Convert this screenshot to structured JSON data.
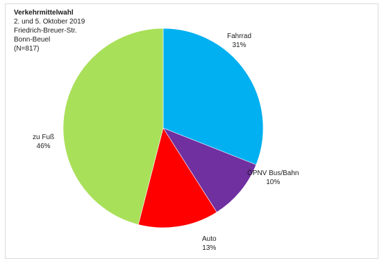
{
  "chart_data": {
    "type": "pie",
    "title": "Verkehrmittelwahl",
    "subtitle_lines": [
      "2. und 5. Oktober 2019",
      "Friedrich-Breuer-Str.",
      "Bonn-Beuel",
      "(N=817)"
    ],
    "slices": [
      {
        "name": "Fahrrad",
        "value": 31,
        "value_label": "31%",
        "color": "#00b0f0"
      },
      {
        "name": "ÖPNV Bus/Bahn",
        "value": 10,
        "value_label": "10%",
        "color": "#7030a0"
      },
      {
        "name": "Auto",
        "value": 13,
        "value_label": "13%",
        "color": "#ff0000"
      },
      {
        "name": "zu Fuß",
        "value": 46,
        "value_label": "46%",
        "color": "#a9e05a"
      }
    ],
    "legend": "none"
  }
}
